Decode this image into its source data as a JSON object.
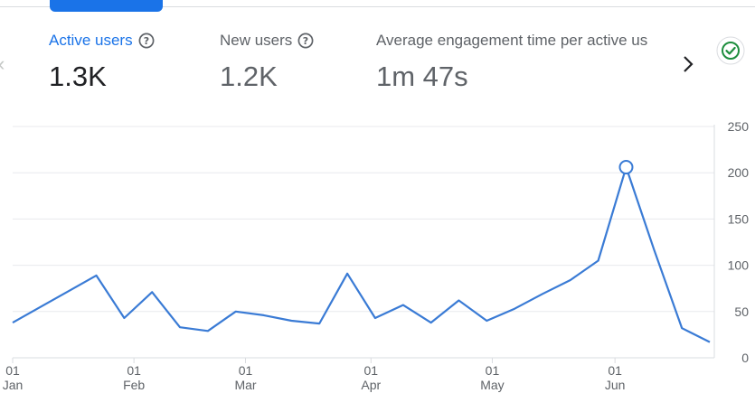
{
  "metrics": [
    {
      "label": "Active users",
      "value": "1.3K",
      "active": true
    },
    {
      "label": "New users",
      "value": "1.2K",
      "active": false
    },
    {
      "label": "Average engagement time per active us",
      "value": "1m 47s",
      "active": false
    }
  ],
  "colors": {
    "accent": "#1a73e8",
    "line": "#3a7bd5",
    "check": "#1e8e3e",
    "grid": "#e8eaed"
  },
  "icons": {
    "help": "question-circle-icon",
    "next": "chevron-right-icon",
    "prev": "chevron-left-icon",
    "status": "check-circle-icon"
  },
  "chart_data": {
    "type": "line",
    "ylim": [
      0,
      250
    ],
    "yticks": [
      "0",
      "50",
      "100",
      "150",
      "200",
      "250"
    ],
    "xticks": [
      {
        "day": "01",
        "month": "Jan",
        "index": 0
      },
      {
        "day": "01",
        "month": "Feb",
        "index": 4.35
      },
      {
        "day": "01",
        "month": "Mar",
        "index": 8.35
      },
      {
        "day": "01",
        "month": "Apr",
        "index": 12.85
      },
      {
        "day": "01",
        "month": "May",
        "index": 17.2
      },
      {
        "day": "01",
        "month": "Jun",
        "index": 21.6
      }
    ],
    "series": [
      {
        "values": [
          38,
          55,
          72,
          89,
          43,
          71,
          33,
          29,
          50,
          46,
          40,
          37,
          91,
          43,
          57,
          38,
          62,
          40,
          53,
          69,
          84,
          105,
          206,
          117,
          32,
          17
        ],
        "highlight_index": 22
      }
    ]
  }
}
